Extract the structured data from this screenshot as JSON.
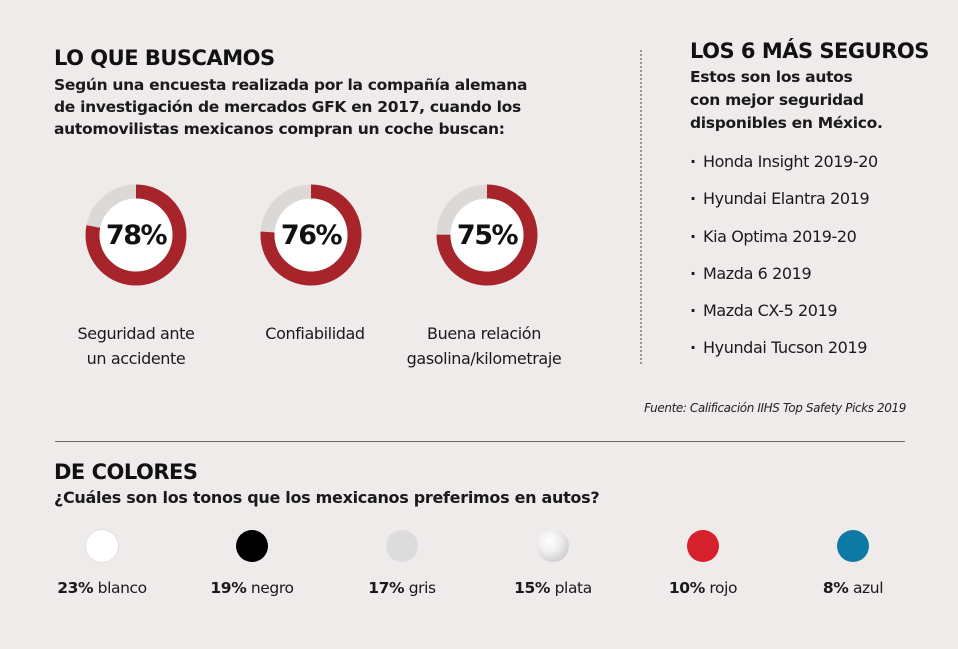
{
  "left": {
    "title": "LO QUE BUSCAMOS",
    "intro_lines": [
      "Según una encuesta realizada por la compañía alemana",
      "de investigación de mercados GFK en 2017, cuando los",
      "automovilistas mexicanos compran un coche buscan:"
    ],
    "donuts": [
      {
        "value_label": "78%",
        "value": 78,
        "caption_lines": [
          "Seguridad ante",
          "un accidente"
        ]
      },
      {
        "value_label": "76%",
        "value": 76,
        "caption_lines": [
          "Confiabilidad"
        ]
      },
      {
        "value_label": "75%",
        "value": 75,
        "caption_lines": [
          "Buena relación",
          "gasolina/kilometraje"
        ]
      }
    ],
    "colors": {
      "fill": "#a8242b",
      "track": "#dcd8d6",
      "center": "#ffffff"
    }
  },
  "right": {
    "title": "LOS 6 MÁS SEGUROS",
    "subtitle_lines": [
      "Estos son los autos",
      "con mejor seguridad",
      "disponibles en México."
    ],
    "bullet": "·",
    "cars": [
      "Honda Insight 2019-20",
      "Hyundai Elantra 2019",
      "Kia Optima 2019-20",
      "Mazda 6 2019",
      "Mazda CX-5 2019",
      "Hyundai Tucson 2019"
    ],
    "source": "Fuente: Calificación IIHS Top Safety Picks 2019"
  },
  "bottom": {
    "title": "DE COLORES",
    "subtitle": "¿Cuáles son los tonos que los mexicanos preferimos en autos?",
    "colors": [
      {
        "pct": "23%",
        "name": "blanco",
        "value": 23,
        "swatch": "#ffffff"
      },
      {
        "pct": "19%",
        "name": "negro",
        "value": 19,
        "swatch": "#000000"
      },
      {
        "pct": "17%",
        "name": "gris",
        "value": 17,
        "swatch": "#dcdcdc"
      },
      {
        "pct": "15%",
        "name": "plata",
        "value": 15,
        "swatch": "silver-gradient"
      },
      {
        "pct": "10%",
        "name": "rojo",
        "value": 10,
        "swatch": "#d6202c"
      },
      {
        "pct": "8%",
        "name": "azul",
        "value": 8,
        "swatch": "#0d7aa6"
      }
    ]
  },
  "chart_data": [
    {
      "type": "pie",
      "title": "LO QUE BUSCAMOS",
      "categories": [
        "Seguridad ante un accidente",
        "Confiabilidad",
        "Buena relación gasolina/kilometraje"
      ],
      "values": [
        78,
        76,
        75
      ],
      "unit": "%"
    },
    {
      "type": "table",
      "title": "DE COLORES",
      "categories": [
        "blanco",
        "negro",
        "gris",
        "plata",
        "rojo",
        "azul"
      ],
      "values": [
        23,
        19,
        17,
        15,
        10,
        8
      ],
      "unit": "%"
    }
  ]
}
